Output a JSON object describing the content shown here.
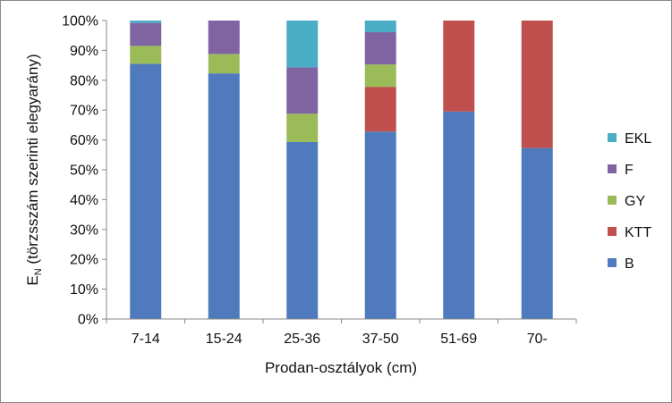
{
  "chart_data": {
    "type": "bar",
    "stacked": true,
    "percent_stacked": true,
    "categories": [
      "7-14",
      "15-24",
      "25-36",
      "37-50",
      "51-69",
      "70-"
    ],
    "series": [
      {
        "name": "B",
        "color": "#4F7BBE",
        "values": [
          85.5,
          82.3,
          59.3,
          62.8,
          69.5,
          57.3
        ]
      },
      {
        "name": "KTT",
        "color": "#C0504D",
        "values": [
          0,
          0,
          0,
          15.0,
          30.5,
          42.7
        ]
      },
      {
        "name": "GY",
        "color": "#9BBB59",
        "values": [
          6.0,
          6.5,
          9.5,
          7.5,
          0,
          0
        ]
      },
      {
        "name": "F",
        "color": "#8064A2",
        "values": [
          7.7,
          11.2,
          15.5,
          10.8,
          0,
          0
        ]
      },
      {
        "name": "EKL",
        "color": "#4BACC6",
        "values": [
          0.8,
          0,
          15.7,
          3.9,
          0,
          0
        ]
      }
    ],
    "xlabel": "Prodan-osztályok (cm)",
    "ylabel_main": "E",
    "ylabel_sub": "N",
    "ylabel_rest": " (törzsszám szerinti elegyarány)",
    "ylim": [
      0,
      100
    ],
    "ytick_labels": [
      "0%",
      "10%",
      "20%",
      "30%",
      "40%",
      "50%",
      "60%",
      "70%",
      "80%",
      "90%",
      "100%"
    ],
    "grid": false,
    "legend_position": "right",
    "legend_order": [
      "EKL",
      "F",
      "GY",
      "KTT",
      "B"
    ]
  }
}
